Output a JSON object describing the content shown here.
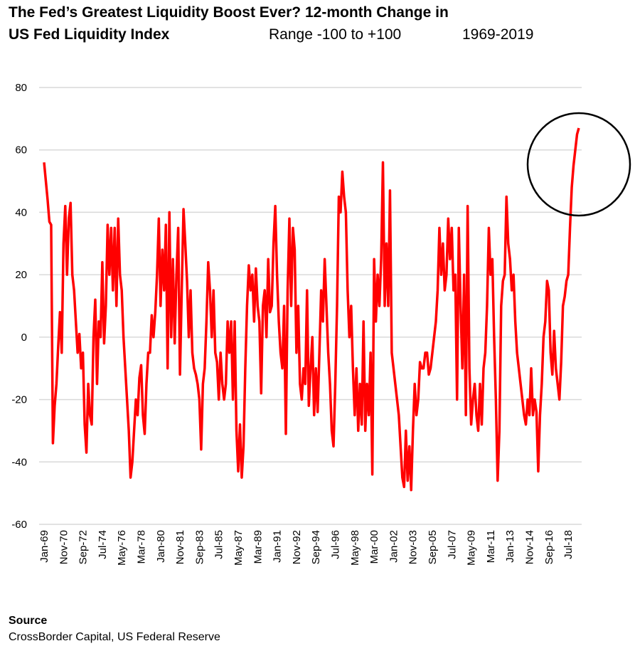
{
  "chart_data": {
    "type": "line",
    "title": "The Fed’s Greatest Liquidity Boost Ever? 12-month Change in",
    "subtitle": "US Fed Liquidity Index",
    "annotations": [
      "Range -100 to +100",
      "1969-2019"
    ],
    "source_label": "Source",
    "source": "CrossBorder Capital, US Federal Reserve",
    "ylim": [
      -60,
      80
    ],
    "yticks": [
      80,
      60,
      40,
      20,
      0,
      -20,
      -40,
      -60
    ],
    "grid": true,
    "categories": [
      "Jan-69",
      null,
      null,
      null,
      null,
      null,
      null,
      null,
      null,
      null,
      null,
      "Nov-70",
      null,
      null,
      null,
      null,
      null,
      null,
      null,
      null,
      null,
      null,
      "Sep-72",
      null,
      null,
      null,
      null,
      null,
      null,
      null,
      null,
      null,
      null,
      "Jul-74",
      null,
      null,
      null,
      null,
      null,
      null,
      null,
      null,
      null,
      null,
      "May-76",
      null,
      null,
      null,
      null,
      null,
      null,
      null,
      null,
      null,
      null,
      "Mar-78",
      null,
      null,
      null,
      null,
      null,
      null,
      null,
      null,
      null,
      null,
      "Jan-80",
      null,
      null,
      null,
      null,
      null,
      null,
      null,
      null,
      null,
      null,
      "Nov-81",
      null,
      null,
      null,
      null,
      null,
      null,
      null,
      null,
      null,
      null,
      "Sep-83",
      null,
      null,
      null,
      null,
      null,
      null,
      null,
      null,
      null,
      null,
      "Jul-85",
      null,
      null,
      null,
      null,
      null,
      null,
      null,
      null,
      null,
      null,
      "May-87",
      null,
      null,
      null,
      null,
      null,
      null,
      null,
      null,
      null,
      null,
      "Mar-89",
      null,
      null,
      null,
      null,
      null,
      null,
      null,
      null,
      null,
      null,
      "Jan-91",
      null,
      null,
      null,
      null,
      null,
      null,
      null,
      null,
      null,
      null,
      "Nov-92",
      null,
      null,
      null,
      null,
      null,
      null,
      null,
      null,
      null,
      null,
      "Sep-94",
      null,
      null,
      null,
      null,
      null,
      null,
      null,
      null,
      null,
      null,
      "Jul-96",
      null,
      null,
      null,
      null,
      null,
      null,
      null,
      null,
      null,
      null,
      "May-98",
      null,
      null,
      null,
      null,
      null,
      null,
      null,
      null,
      null,
      null,
      "Mar-00",
      null,
      null,
      null,
      null,
      null,
      null,
      null,
      null,
      null,
      null,
      "Jan-02",
      null,
      null,
      null,
      null,
      null,
      null,
      null,
      null,
      null,
      null,
      "Nov-03",
      null,
      null,
      null,
      null,
      null,
      null,
      null,
      null,
      null,
      null,
      "Sep-05",
      null,
      null,
      null,
      null,
      null,
      null,
      null,
      null,
      null,
      null,
      "Jul-07",
      null,
      null,
      null,
      null,
      null,
      null,
      null,
      null,
      null,
      null,
      "May-09",
      null,
      null,
      null,
      null,
      null,
      null,
      null,
      null,
      null,
      null,
      "Mar-11",
      null,
      null,
      null,
      null,
      null,
      null,
      null,
      null,
      null,
      null,
      "Jan-13",
      null,
      null,
      null,
      null,
      null,
      null,
      null,
      null,
      null,
      null,
      "Nov-14",
      null,
      null,
      null,
      null,
      null,
      null,
      null,
      null,
      null,
      null,
      "Sep-16",
      null,
      null,
      null,
      null,
      null,
      null,
      null,
      null,
      null,
      null,
      "Jul-18",
      null,
      null,
      null,
      null,
      null,
      null
    ],
    "series": [
      {
        "color": "#ff0000",
        "values": [
          56,
          50,
          44,
          37,
          36,
          -34,
          -22,
          -15,
          -3,
          8,
          -5,
          30,
          42,
          20,
          38,
          43,
          20,
          15,
          5,
          -5,
          1,
          -10,
          -5,
          -28,
          -37,
          -15,
          -25,
          -28,
          0,
          12,
          -15,
          5,
          0,
          24,
          -2,
          10,
          36,
          20,
          35,
          15,
          35,
          10,
          38,
          20,
          15,
          0,
          -10,
          -20,
          -30,
          -45,
          -40,
          -30,
          -20,
          -25,
          -13,
          -9,
          -25,
          -31,
          -15,
          -5,
          -5,
          7,
          0,
          8,
          20,
          38,
          10,
          28,
          15,
          36,
          -10,
          40,
          0,
          25,
          -2,
          20,
          35,
          -12,
          15,
          41,
          30,
          18,
          0,
          15,
          -5,
          -10,
          -12,
          -15,
          -20,
          -36,
          -15,
          -10,
          5,
          24,
          15,
          0,
          15,
          -5,
          -8,
          -20,
          -5,
          -15,
          -20,
          -15,
          5,
          -5,
          5,
          -20,
          5,
          -30,
          -43,
          -28,
          -45,
          -35,
          -10,
          10,
          23,
          15,
          20,
          5,
          22,
          10,
          5,
          -18,
          10,
          15,
          0,
          25,
          8,
          10,
          30,
          42,
          20,
          5,
          -5,
          -10,
          10,
          -31,
          15,
          38,
          10,
          35,
          28,
          -5,
          10,
          -15,
          -20,
          -10,
          -15,
          15,
          -22,
          -10,
          0,
          -25,
          -10,
          -24,
          -5,
          15,
          5,
          25,
          10,
          -5,
          -15,
          -30,
          -35,
          -15,
          10,
          45,
          40,
          53,
          45,
          40,
          15,
          0,
          10,
          -10,
          -25,
          -10,
          -30,
          -15,
          -28,
          5,
          -30,
          -15,
          -25,
          -5,
          -44,
          25,
          5,
          20,
          10,
          25,
          56,
          10,
          30,
          10,
          47,
          -5,
          -10,
          -15,
          -20,
          -25,
          -35,
          -45,
          -48,
          -30,
          -46,
          -35,
          -49,
          -30,
          -15,
          -25,
          -20,
          -8,
          -10,
          -10,
          -5,
          -5,
          -12,
          -10,
          -5,
          0,
          5,
          15,
          35,
          20,
          30,
          15,
          20,
          38,
          25,
          35,
          15,
          20,
          -20,
          35,
          10,
          -10,
          20,
          -25,
          42,
          -10,
          -28,
          -20,
          -15,
          -25,
          -30,
          -15,
          -28,
          -10,
          -5,
          10,
          35,
          20,
          25,
          0,
          -20,
          -46,
          -30,
          10,
          18,
          20,
          45,
          30,
          25,
          15,
          20,
          5,
          -5,
          -10,
          -15,
          -20,
          -25,
          -28,
          -20,
          -25,
          -10,
          -25,
          -20,
          -24,
          -43,
          -25,
          -15,
          0,
          5,
          18,
          15,
          -5,
          -12,
          2,
          -10,
          -15,
          -20,
          -8,
          10,
          13,
          18,
          20,
          35,
          48,
          55,
          60,
          65,
          67
        ]
      }
    ]
  }
}
